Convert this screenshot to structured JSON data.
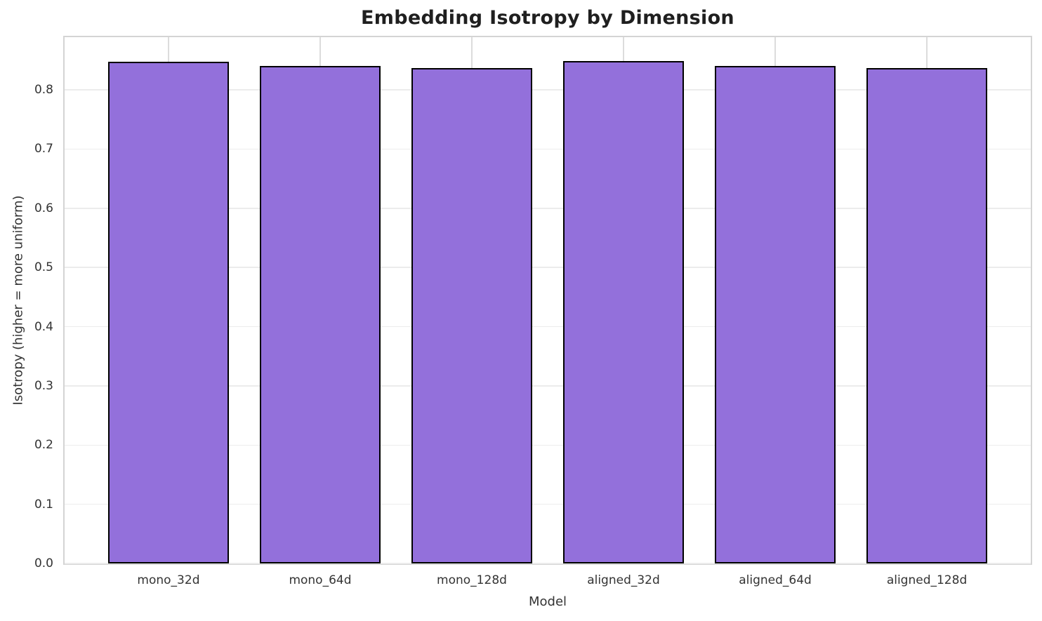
{
  "chart_data": {
    "type": "bar",
    "title": "Embedding Isotropy by Dimension",
    "xlabel": "Model",
    "ylabel": "Isotropy (higher = more uniform)",
    "categories": [
      "mono_32d",
      "mono_64d",
      "mono_128d",
      "aligned_32d",
      "aligned_64d",
      "aligned_128d"
    ],
    "values": [
      0.848,
      0.841,
      0.837,
      0.849,
      0.841,
      0.837
    ],
    "ylim": [
      0,
      0.889
    ],
    "yticks": [
      0.0,
      0.1,
      0.2,
      0.3,
      0.4,
      0.5,
      0.6,
      0.7,
      0.8
    ],
    "ytick_labels": [
      "0.0",
      "0.1",
      "0.2",
      "0.3",
      "0.4",
      "0.5",
      "0.6",
      "0.7",
      "0.8"
    ],
    "grid": true,
    "legend": null,
    "bar_color": "#9370DB",
    "bar_edge_color": "#000000",
    "gridline_color_h": "#ececec",
    "gridline_color_v": "#dcdcdc",
    "spine_color": "#d4d4d4",
    "title_color": "#1f1f1f",
    "text_color": "#333333",
    "background_color": "#ffffff"
  }
}
